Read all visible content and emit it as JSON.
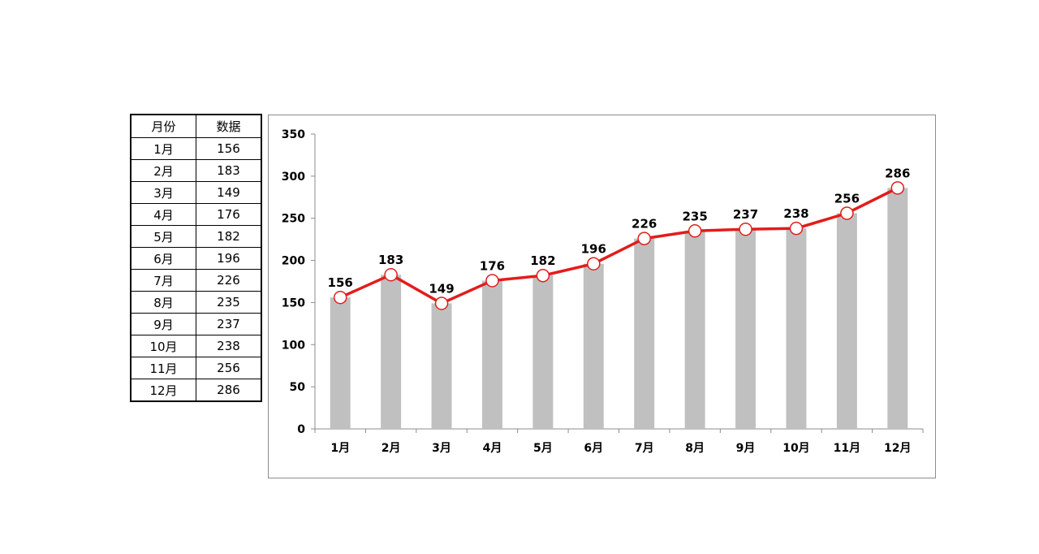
{
  "table": {
    "headers": [
      "月份",
      "数据"
    ],
    "rows": [
      [
        "1月",
        "156"
      ],
      [
        "2月",
        "183"
      ],
      [
        "3月",
        "149"
      ],
      [
        "4月",
        "176"
      ],
      [
        "5月",
        "182"
      ],
      [
        "6月",
        "196"
      ],
      [
        "7月",
        "226"
      ],
      [
        "8月",
        "235"
      ],
      [
        "9月",
        "237"
      ],
      [
        "10月",
        "238"
      ],
      [
        "11月",
        "256"
      ],
      [
        "12月",
        "286"
      ]
    ]
  },
  "chart_data": {
    "type": "bar",
    "categories": [
      "1月",
      "2月",
      "3月",
      "4月",
      "5月",
      "6月",
      "7月",
      "8月",
      "9月",
      "10月",
      "11月",
      "12月"
    ],
    "series": [
      {
        "type": "bar",
        "values": [
          156,
          183,
          149,
          176,
          182,
          196,
          226,
          235,
          237,
          238,
          256,
          286
        ],
        "color": "#c0c0c0"
      },
      {
        "type": "line",
        "values": [
          156,
          183,
          149,
          176,
          182,
          196,
          226,
          235,
          237,
          238,
          256,
          286
        ],
        "color": "#e31c1c",
        "marker": "hollow-circle"
      }
    ],
    "title": "",
    "xlabel": "",
    "ylabel": "",
    "ylim": [
      0,
      350
    ],
    "yticks": [
      0,
      50,
      100,
      150,
      200,
      250,
      300,
      350
    ],
    "data_labels": true,
    "grid": false,
    "legend": "none"
  }
}
